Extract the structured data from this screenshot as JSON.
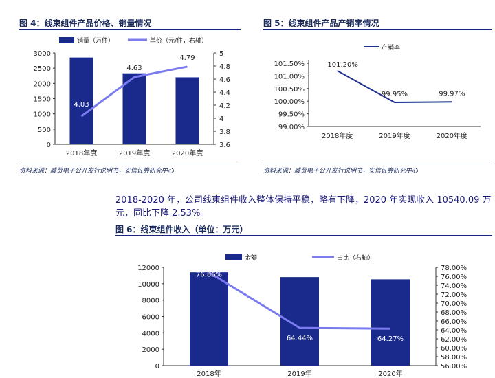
{
  "fig4": {
    "title": "图 4：线束组件产品价格、销量情况"
  },
  "fig5": {
    "title": "图 5：线束组件产品产销率情况"
  },
  "fig6": {
    "title": "图 6：线束组件收入（单位：万元）"
  },
  "source4": "资料来源：威贸电子公开发行说明书，安信证券研究中心",
  "source5": "资料来源：威贸电子公开发行说明书，安信证券研究中心",
  "paragraph": "2018-2020 年，公司线束组件收入整体保持平稳，略有下降，2020 年实现收入 10540.09 万元，同比下降 2.53%。",
  "colors": {
    "bar": "#1a2a8c",
    "line": "#7b7bf0",
    "line5": "#1f2f8f"
  },
  "chart_data": [
    {
      "type": "bar+line",
      "categories": [
        "2018年度",
        "2019年度",
        "2020年度"
      ],
      "series": [
        {
          "name": "销量（万件）",
          "type": "bar",
          "axis": "left",
          "values": [
            2850,
            2330,
            2200
          ]
        },
        {
          "name": "单价（元/件，右轴）",
          "type": "line",
          "axis": "right",
          "values": [
            4.03,
            4.63,
            4.79
          ],
          "labels": [
            "4.03",
            "4.63",
            "4.79"
          ]
        }
      ],
      "y_left": {
        "min": 0,
        "max": 3000,
        "ticks": [
          "0",
          "500",
          "1000",
          "1500",
          "2000",
          "2500",
          "3000"
        ]
      },
      "y_right": {
        "min": 3.6,
        "max": 5,
        "ticks": [
          "3.6",
          "3.8",
          "4",
          "4.2",
          "4.4",
          "4.6",
          "4.8",
          "5"
        ]
      },
      "legend": "top"
    },
    {
      "type": "line",
      "categories": [
        "2018年度",
        "2019年度",
        "2020年度"
      ],
      "series": [
        {
          "name": "产销率",
          "values": [
            101.2,
            99.95,
            99.97
          ],
          "labels": [
            "101.20%",
            "99.95%",
            "99.97%"
          ]
        }
      ],
      "y": {
        "min": 99.0,
        "max": 101.5,
        "ticks": [
          "99.00%",
          "99.50%",
          "100.00%",
          "100.50%",
          "101.00%",
          "101.50%"
        ]
      },
      "legend": "top"
    },
    {
      "type": "bar+line",
      "categories": [
        "2018年",
        "2019年",
        "2020年"
      ],
      "series": [
        {
          "name": "金额",
          "type": "bar",
          "axis": "left",
          "values": [
            11400,
            10813,
            10540.09
          ]
        },
        {
          "name": "占比（右轴）",
          "type": "line",
          "axis": "right",
          "values": [
            76.86,
            64.44,
            64.27
          ],
          "labels": [
            "76.86%",
            "64.44%",
            "64.27%"
          ]
        }
      ],
      "y_left": {
        "min": 0,
        "max": 12000,
        "ticks": [
          "0",
          "2000",
          "4000",
          "6000",
          "8000",
          "10000",
          "12000"
        ]
      },
      "y_right": {
        "min": 56,
        "max": 78,
        "ticks": [
          "56.00%",
          "58.00%",
          "60.00%",
          "62.00%",
          "64.00%",
          "66.00%",
          "68.00%",
          "70.00%",
          "72.00%",
          "74.00%",
          "76.00%",
          "78.00%"
        ]
      },
      "legend": "top"
    }
  ]
}
